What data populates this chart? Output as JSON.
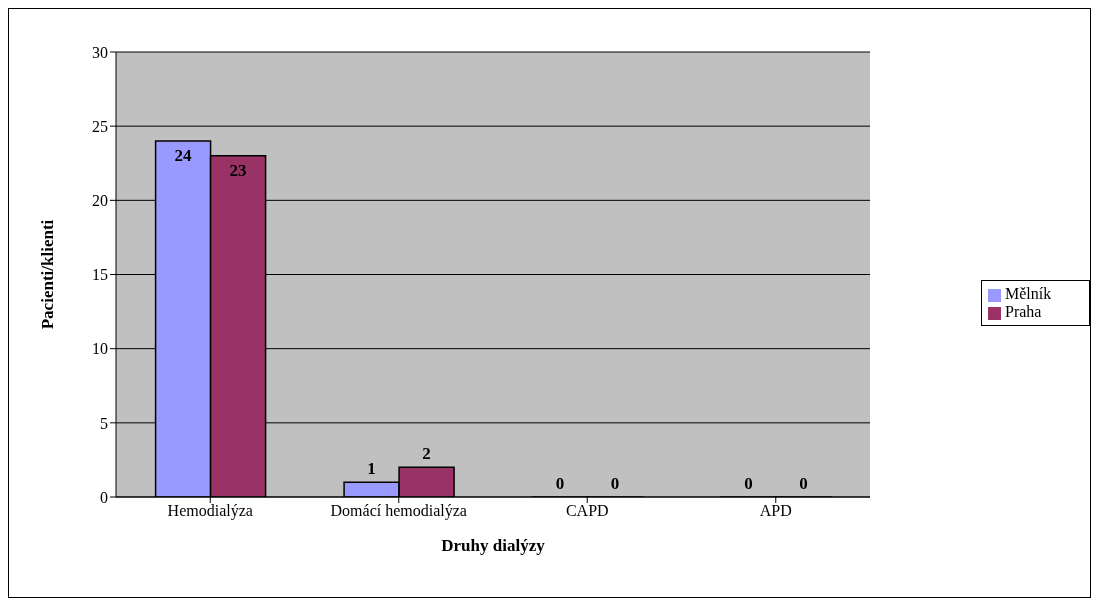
{
  "chart_data": {
    "type": "bar",
    "xlabel": "Druhy dialýzy",
    "ylabel": "Pacienti/klienti",
    "categories": [
      "Hemodialýza",
      "Domácí hemodialýza",
      "CAPD",
      "APD"
    ],
    "series": [
      {
        "name": "Mělník",
        "color": "#9999ff",
        "values": [
          24,
          1,
          0,
          0
        ]
      },
      {
        "name": "Praha",
        "color": "#993366",
        "values": [
          23,
          2,
          0,
          0
        ]
      }
    ],
    "ylim": [
      0,
      30
    ],
    "yticks": [
      0,
      5,
      10,
      15,
      20,
      25,
      30
    ],
    "grid": "y",
    "legend": "right",
    "data_labels": true
  }
}
